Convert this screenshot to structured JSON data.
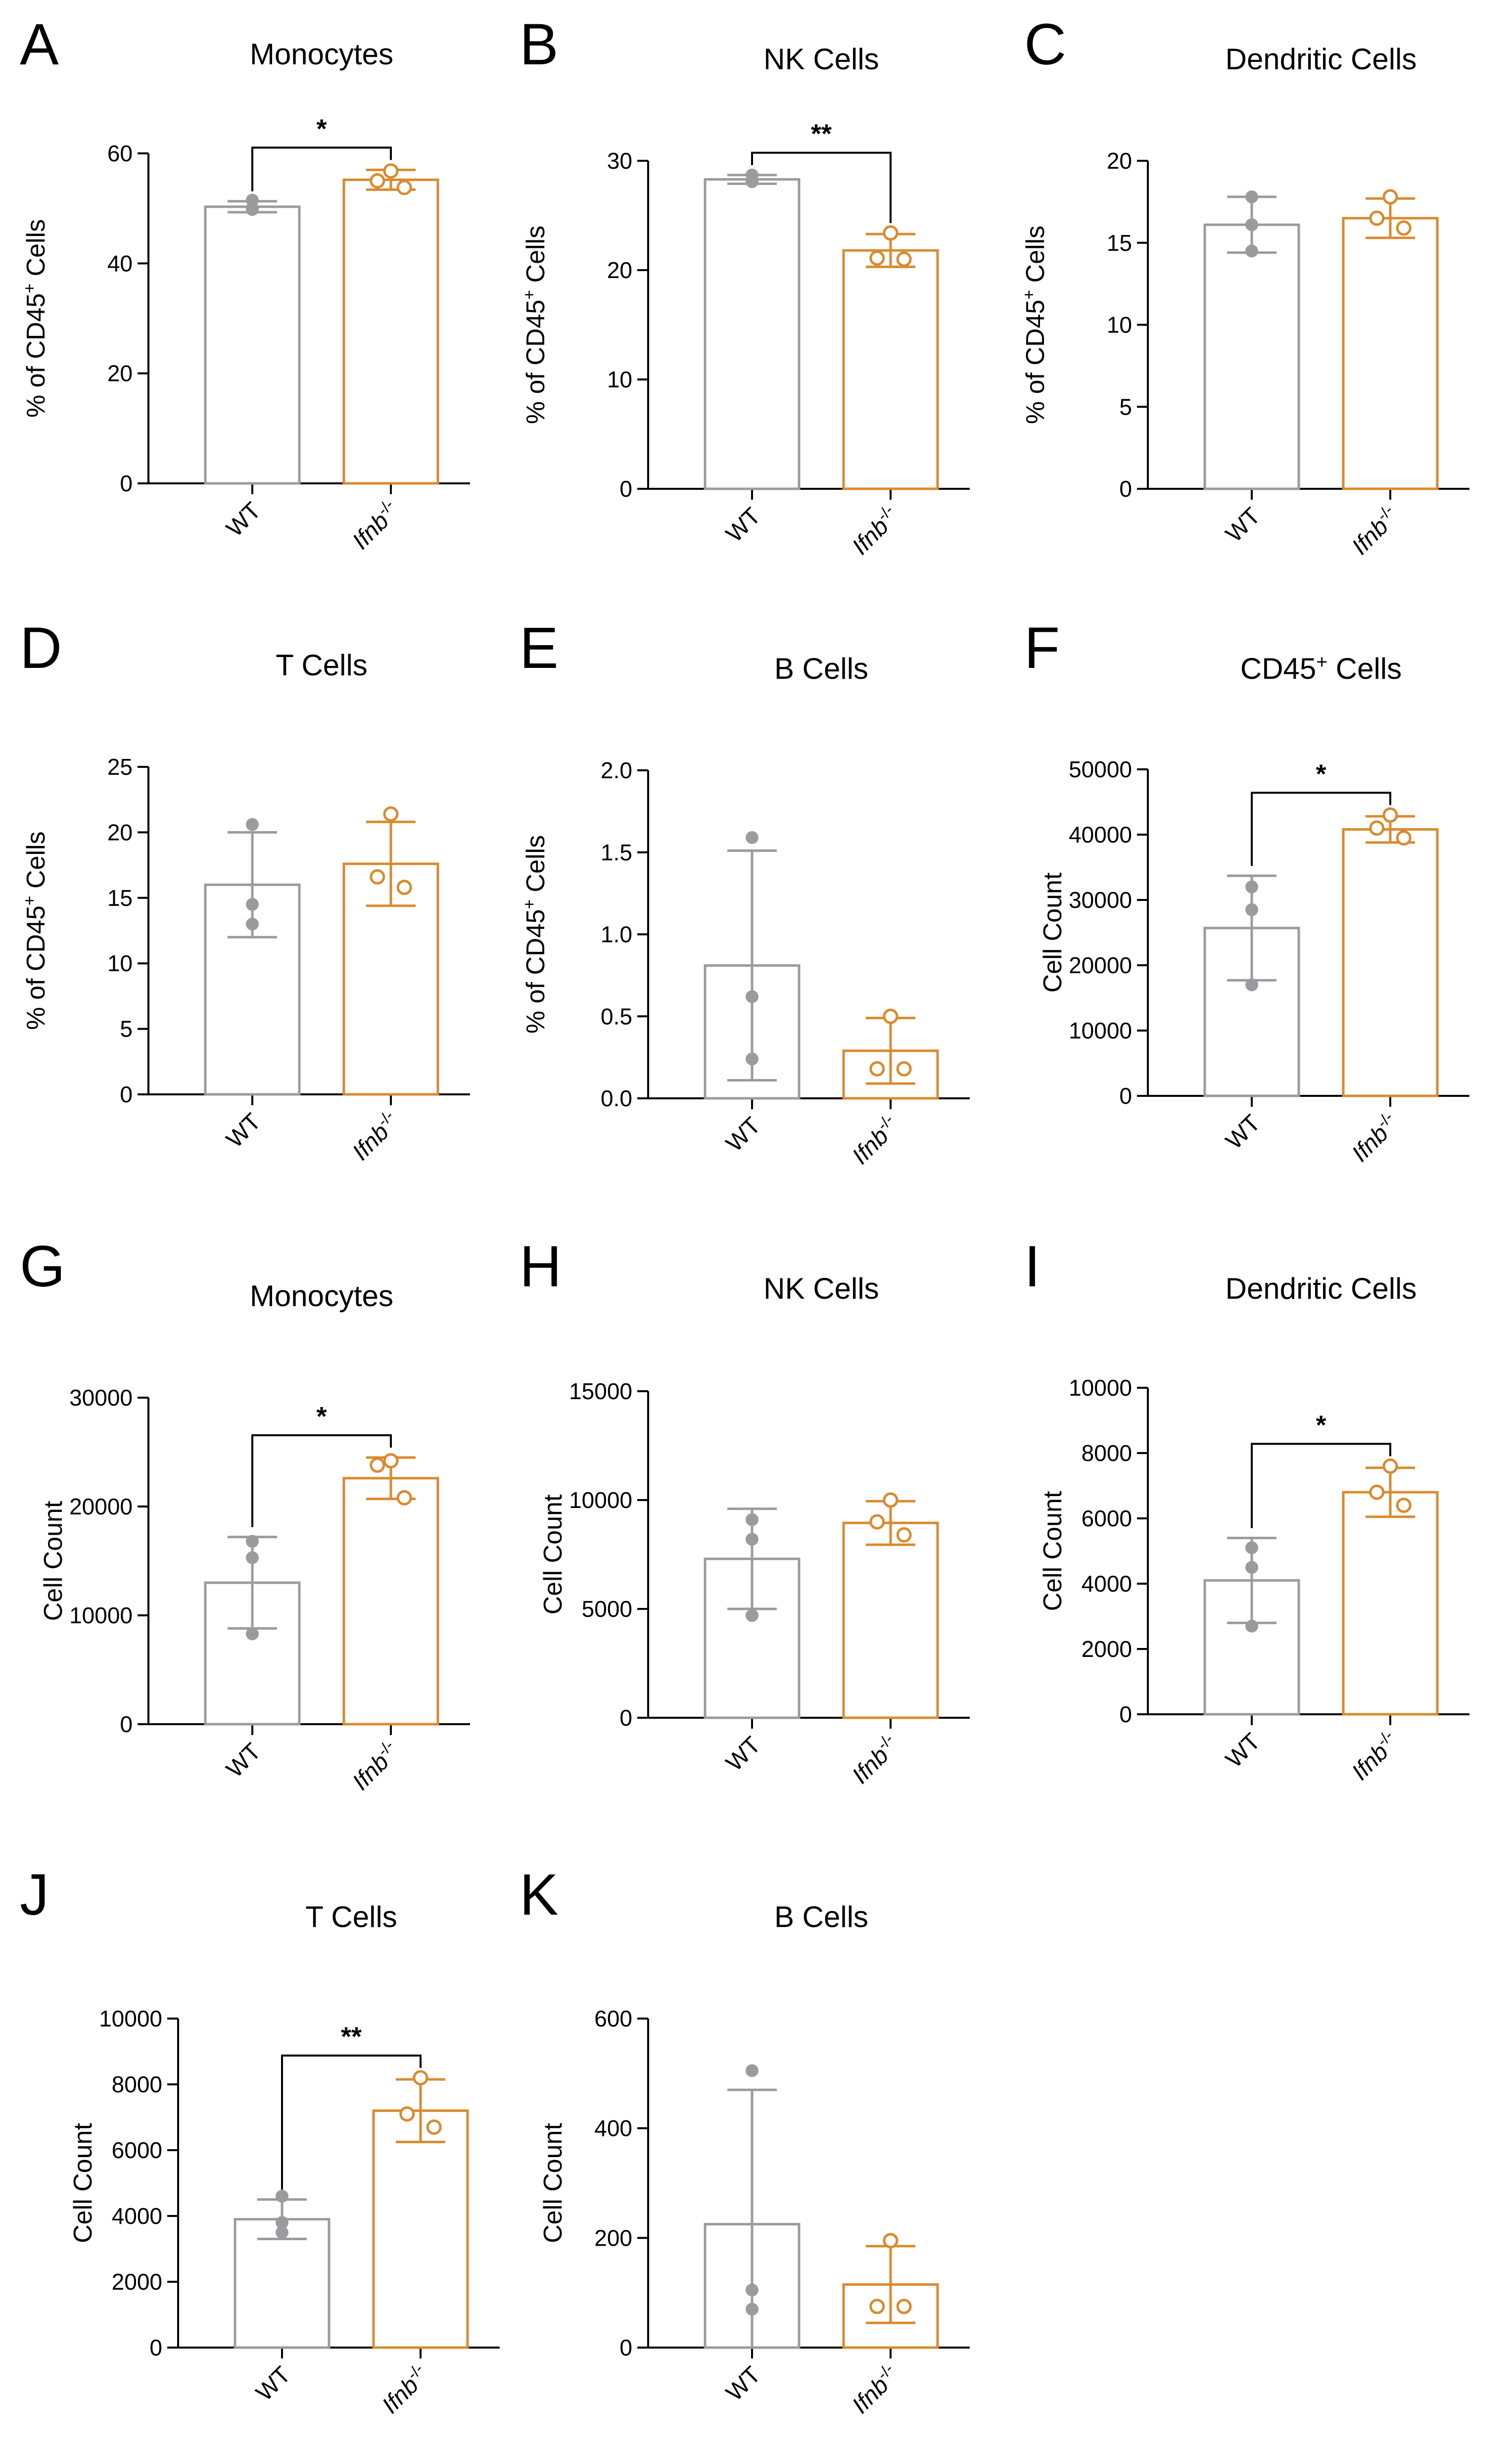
{
  "colors": {
    "wt": "#9b9b9f",
    "ko": "#d98a2e",
    "axis": "#000000"
  },
  "chart_data": [
    {
      "panel": "A",
      "type": "bar",
      "title": "Monocytes",
      "ylabel": "% of CD45+ Cells",
      "yticks": [
        0,
        20,
        40,
        60
      ],
      "ylim": [
        0,
        60
      ],
      "categories": [
        "WT",
        "Ifnb-/-"
      ],
      "series": [
        {
          "name": "WT",
          "mean": 50.3,
          "err": 1.0,
          "points": [
            51.5,
            50.0,
            49.8
          ]
        },
        {
          "name": "Ifnb-/-",
          "mean": 55.2,
          "err": 1.8,
          "points": [
            56.8,
            55.0,
            53.8
          ]
        }
      ],
      "sig": "*"
    },
    {
      "panel": "B",
      "type": "bar",
      "title": "NK Cells",
      "ylabel": "% of CD45+ Cells",
      "yticks": [
        0,
        10,
        20,
        30
      ],
      "ylim": [
        0,
        30
      ],
      "categories": [
        "WT",
        "Ifnb-/-"
      ],
      "series": [
        {
          "name": "WT",
          "mean": 28.3,
          "err": 0.4,
          "points": [
            28.7,
            28.1,
            28.1
          ]
        },
        {
          "name": "Ifnb-/-",
          "mean": 21.8,
          "err": 1.5,
          "points": [
            23.4,
            21.1,
            21.0
          ]
        }
      ],
      "sig": "**"
    },
    {
      "panel": "C",
      "type": "bar",
      "title": "Dendritic Cells",
      "ylabel": "% of CD45+ Cells",
      "yticks": [
        0,
        5,
        10,
        15,
        20
      ],
      "ylim": [
        0,
        20
      ],
      "categories": [
        "WT",
        "Ifnb-/-"
      ],
      "series": [
        {
          "name": "WT",
          "mean": 16.1,
          "err": 1.7,
          "points": [
            17.8,
            16.1,
            14.5
          ]
        },
        {
          "name": "Ifnb-/-",
          "mean": 16.5,
          "err": 1.2,
          "points": [
            17.8,
            16.5,
            15.9
          ]
        }
      ],
      "sig": ""
    },
    {
      "panel": "D",
      "type": "bar",
      "title": "T Cells",
      "ylabel": "% of CD45+ Cells",
      "yticks": [
        0,
        5,
        10,
        15,
        20,
        25
      ],
      "ylim": [
        0,
        25
      ],
      "categories": [
        "WT",
        "Ifnb-/-"
      ],
      "series": [
        {
          "name": "WT",
          "mean": 16.0,
          "err": 4.0,
          "points": [
            20.6,
            14.5,
            13.0
          ]
        },
        {
          "name": "Ifnb-/-",
          "mean": 17.6,
          "err": 3.2,
          "points": [
            21.4,
            16.6,
            15.8
          ]
        }
      ],
      "sig": ""
    },
    {
      "panel": "E",
      "type": "bar",
      "title": "B Cells",
      "ylabel": "% of CD45+ Cells",
      "yticks": [
        0.0,
        0.5,
        1.0,
        1.5,
        2.0
      ],
      "ylim": [
        0,
        2.0
      ],
      "decimals": 1,
      "categories": [
        "WT",
        "Ifnb-/-"
      ],
      "series": [
        {
          "name": "WT",
          "mean": 0.81,
          "err": 0.7,
          "points": [
            1.59,
            0.62,
            0.24
          ]
        },
        {
          "name": "Ifnb-/-",
          "mean": 0.29,
          "err": 0.2,
          "points": [
            0.5,
            0.18,
            0.18
          ]
        }
      ],
      "sig": ""
    },
    {
      "panel": "F",
      "type": "bar",
      "title": "CD45+ Cells",
      "ylabel": "Cell Count",
      "yticks": [
        0,
        10000,
        20000,
        30000,
        40000,
        50000
      ],
      "ylim": [
        0,
        50000
      ],
      "categories": [
        "WT",
        "Ifnb-/-"
      ],
      "series": [
        {
          "name": "WT",
          "mean": 25700,
          "err": 8000,
          "points": [
            32000,
            28500,
            17000
          ]
        },
        {
          "name": "Ifnb-/-",
          "mean": 40800,
          "err": 2000,
          "points": [
            43000,
            41000,
            39500
          ]
        }
      ],
      "sig": "*"
    },
    {
      "panel": "G",
      "type": "bar",
      "title": "Monocytes",
      "ylabel": "Cell Count",
      "yticks": [
        0,
        10000,
        20000,
        30000
      ],
      "ylim": [
        0,
        30000
      ],
      "categories": [
        "WT",
        "Ifnb-/-"
      ],
      "series": [
        {
          "name": "WT",
          "mean": 13000,
          "err": 4200,
          "points": [
            16800,
            15300,
            8300
          ]
        },
        {
          "name": "Ifnb-/-",
          "mean": 22600,
          "err": 1900,
          "points": [
            24200,
            23800,
            20800
          ]
        }
      ],
      "sig": "*"
    },
    {
      "panel": "H",
      "type": "bar",
      "title": "NK Cells",
      "ylabel": "Cell Count",
      "yticks": [
        0,
        5000,
        10000,
        15000
      ],
      "ylim": [
        0,
        15000
      ],
      "categories": [
        "WT",
        "Ifnb-/-"
      ],
      "series": [
        {
          "name": "WT",
          "mean": 7300,
          "err": 2300,
          "points": [
            9100,
            8200,
            4700
          ]
        },
        {
          "name": "Ifnb-/-",
          "mean": 8950,
          "err": 1000,
          "points": [
            10000,
            9000,
            8400
          ]
        }
      ],
      "sig": ""
    },
    {
      "panel": "I",
      "type": "bar",
      "title": "Dendritic Cells",
      "ylabel": "Cell Count",
      "yticks": [
        0,
        2000,
        4000,
        6000,
        8000,
        10000
      ],
      "ylim": [
        0,
        10000
      ],
      "categories": [
        "WT",
        "Ifnb-/-"
      ],
      "series": [
        {
          "name": "WT",
          "mean": 4100,
          "err": 1300,
          "points": [
            5100,
            4500,
            2700
          ]
        },
        {
          "name": "Ifnb-/-",
          "mean": 6800,
          "err": 750,
          "points": [
            7600,
            6800,
            6400
          ]
        }
      ],
      "sig": "*"
    },
    {
      "panel": "J",
      "type": "bar",
      "title": "T Cells",
      "ylabel": "Cell Count",
      "yticks": [
        0,
        2000,
        4000,
        6000,
        8000,
        10000
      ],
      "ylim": [
        0,
        10000
      ],
      "categories": [
        "WT",
        "Ifnb-/-"
      ],
      "series": [
        {
          "name": "WT",
          "mean": 3900,
          "err": 600,
          "points": [
            4600,
            3800,
            3500
          ]
        },
        {
          "name": "Ifnb-/-",
          "mean": 7200,
          "err": 950,
          "points": [
            8200,
            7100,
            6700
          ]
        }
      ],
      "sig": "**"
    },
    {
      "panel": "K",
      "type": "bar",
      "title": "B Cells",
      "ylabel": "Cell Count",
      "yticks": [
        0,
        200,
        400,
        600
      ],
      "ylim": [
        0,
        600
      ],
      "categories": [
        "WT",
        "Ifnb-/-"
      ],
      "series": [
        {
          "name": "WT",
          "mean": 225,
          "err": 245,
          "points": [
            505,
            105,
            70
          ]
        },
        {
          "name": "Ifnb-/-",
          "mean": 115,
          "err": 70,
          "points": [
            195,
            75,
            75
          ]
        }
      ],
      "sig": ""
    }
  ]
}
